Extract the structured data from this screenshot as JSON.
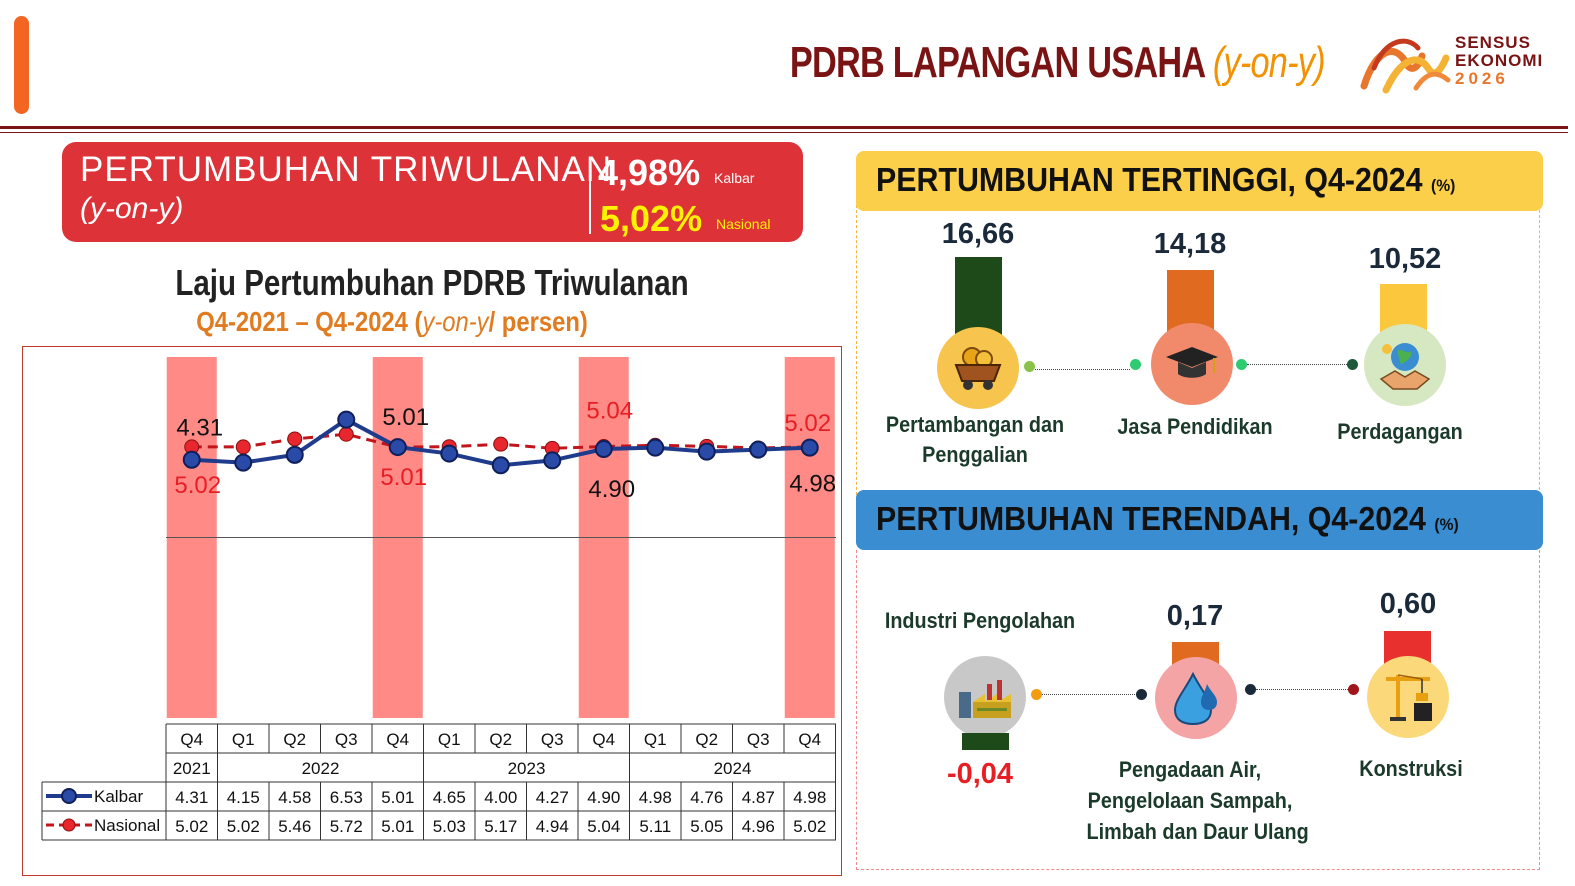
{
  "header": {
    "title_main": "PDRB LAPANGAN USAHA",
    "title_open": "(",
    "title_italic": "y-on-y",
    "title_close": ")",
    "logo_line1": "SENSUS",
    "logo_line2": "EKONOMI",
    "logo_line3": "2026"
  },
  "summary": {
    "title": "PERTUMBUHAN TRIWULANAN",
    "subtitle": "(y-on-y)",
    "kalbar_value": "4,98%",
    "kalbar_label": "Kalbar",
    "nasional_value": "5,02%",
    "nasional_label": "Nasional"
  },
  "chart_data": {
    "type": "line",
    "title": "Laju Pertumbuhan PDRB Triwulanan",
    "subtitle_part1": "Q4-2021 – Q4-2024 (",
    "subtitle_italic": "y-on-y",
    "subtitle_part2": "/ persen)",
    "categories": [
      "Q4",
      "Q1",
      "Q2",
      "Q3",
      "Q4",
      "Q1",
      "Q2",
      "Q3",
      "Q4",
      "Q1",
      "Q2",
      "Q3",
      "Q4"
    ],
    "years": [
      {
        "label": "2021",
        "from": 0,
        "to": 0
      },
      {
        "label": "2022",
        "from": 1,
        "to": 4
      },
      {
        "label": "2023",
        "from": 5,
        "to": 8
      },
      {
        "label": "2024",
        "from": 9,
        "to": 12
      }
    ],
    "highlight_indices": [
      0,
      4,
      8,
      12
    ],
    "series": [
      {
        "name": "Kalbar",
        "values": [
          4.31,
          4.15,
          4.58,
          6.53,
          5.01,
          4.65,
          4.0,
          4.27,
          4.9,
          4.98,
          4.76,
          4.87,
          4.98
        ],
        "color": "#1f3b8c"
      },
      {
        "name": "Nasional",
        "values": [
          5.02,
          5.02,
          5.46,
          5.72,
          5.01,
          5.03,
          5.17,
          4.94,
          5.04,
          5.11,
          5.05,
          4.96,
          5.02
        ],
        "color": "#c0151b"
      }
    ],
    "kalbar_labels": [
      "4.31",
      "5.01",
      "4.90",
      "4.98"
    ],
    "nasional_labels": [
      "5.02",
      "5.01",
      "5.04",
      "5.02"
    ],
    "ylim": [
      -10,
      10
    ],
    "highlight_color": "#ff8a86"
  },
  "tertinggi": {
    "title": "PERTUMBUHAN TERTINGGI, Q4-2024",
    "unit": "(%)",
    "items": [
      {
        "value": "16,66",
        "label_line1": "Pertambangan dan",
        "label_line2": "Penggalian",
        "icon": "mining-cart-icon",
        "bar_color": "#1e4a1a",
        "circle_color": "#f7c54d"
      },
      {
        "value": "14,18",
        "label_line1": "Jasa Pendidikan",
        "label_line2": "",
        "icon": "graduation-cap-icon",
        "bar_color": "#e06a1f",
        "circle_color": "#f08a6a"
      },
      {
        "value": "10,52",
        "label_line1": "Perdagangan",
        "label_line2": "",
        "icon": "handshake-globe-icon",
        "bar_color": "#fbc73d",
        "circle_color": "#d6e8c2"
      }
    ]
  },
  "terendah": {
    "title": "PERTUMBUHAN TERENDAH, Q4-2024",
    "unit": "(%)",
    "items": [
      {
        "value": "-0,04",
        "label_line1": "Industri Pengolahan",
        "label_line2": "",
        "label_line3": "",
        "icon": "factory-icon",
        "bar_color": "#1e4a1a",
        "circle_color": "#c8c8c8"
      },
      {
        "value": "0,17",
        "label_line1": "Pengadaan Air,",
        "label_line2": "Pengelolaan Sampah,",
        "label_line3": "Limbah dan Daur Ulang",
        "icon": "water-drop-icon",
        "bar_color": "#e06a1f",
        "circle_color": "#f4a4a4"
      },
      {
        "value": "0,60",
        "label_line1": "Konstruksi",
        "label_line2": "",
        "label_line3": "",
        "icon": "crane-icon",
        "bar_color": "#e8312f",
        "circle_color": "#fbd97a"
      }
    ]
  }
}
